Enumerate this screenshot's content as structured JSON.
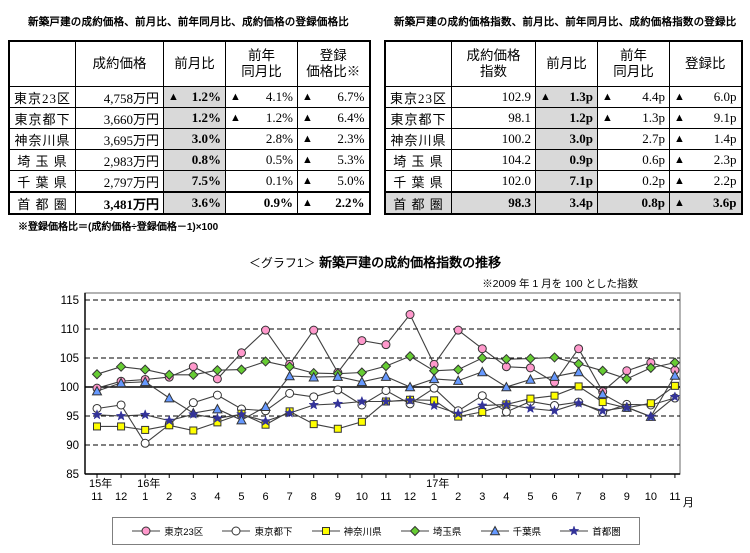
{
  "left_table": {
    "title": "新築戸建の成約価格、前月比、前年同月比、成約価格の登録価格比",
    "headers": [
      "成約価格",
      "前月比",
      "前年\n同月比",
      "登録\n価格比※"
    ],
    "rows": [
      {
        "label": "東京23区",
        "values": [
          {
            "tri": false,
            "text": "4,758万円"
          },
          {
            "tri": true,
            "text": "1.2%"
          },
          {
            "tri": true,
            "text": "4.1%"
          },
          {
            "tri": true,
            "text": "6.7%"
          }
        ]
      },
      {
        "label": "東京都下",
        "values": [
          {
            "tri": false,
            "text": "3,660万円"
          },
          {
            "tri": false,
            "text": "1.2%"
          },
          {
            "tri": true,
            "text": "1.2%"
          },
          {
            "tri": true,
            "text": "6.4%"
          }
        ]
      },
      {
        "label": "神奈川県",
        "values": [
          {
            "tri": false,
            "text": "3,695万円"
          },
          {
            "tri": false,
            "text": "3.0%"
          },
          {
            "tri": false,
            "text": "2.8%"
          },
          {
            "tri": true,
            "text": "2.3%"
          }
        ]
      },
      {
        "label": "埼 玉 県",
        "values": [
          {
            "tri": false,
            "text": "2,983万円"
          },
          {
            "tri": false,
            "text": "0.8%"
          },
          {
            "tri": false,
            "text": "0.5%"
          },
          {
            "tri": true,
            "text": "5.3%"
          }
        ]
      },
      {
        "label": "千 葉 県",
        "values": [
          {
            "tri": false,
            "text": "2,797万円"
          },
          {
            "tri": false,
            "text": "7.5%"
          },
          {
            "tri": false,
            "text": "0.1%"
          },
          {
            "tri": true,
            "text": "5.0%"
          }
        ]
      },
      {
        "label": "首 都 圏",
        "values": [
          {
            "tri": false,
            "text": "3,481万円"
          },
          {
            "tri": false,
            "text": "3.6%"
          },
          {
            "tri": false,
            "text": "0.9%"
          },
          {
            "tri": true,
            "text": "2.2%"
          }
        ]
      }
    ],
    "footnote": "※登録価格比＝(成約価格÷登録価格－1)×100"
  },
  "right_table": {
    "title": "新築戸建の成約価格指数、前月比、前年同月比、成約価格指数の登録比",
    "headers": [
      "成約価格\n指数",
      "前月比",
      "前年\n同月比",
      "登録比"
    ],
    "rows": [
      {
        "label": "東京23区",
        "values": [
          {
            "tri": false,
            "text": "102.9"
          },
          {
            "tri": true,
            "text": "1.3p"
          },
          {
            "tri": true,
            "text": "4.4p"
          },
          {
            "tri": true,
            "text": "6.0p"
          }
        ]
      },
      {
        "label": "東京都下",
        "values": [
          {
            "tri": false,
            "text": "98.1"
          },
          {
            "tri": false,
            "text": "1.2p"
          },
          {
            "tri": true,
            "text": "1.3p"
          },
          {
            "tri": true,
            "text": "9.1p"
          }
        ]
      },
      {
        "label": "神奈川県",
        "values": [
          {
            "tri": false,
            "text": "100.2"
          },
          {
            "tri": false,
            "text": "3.0p"
          },
          {
            "tri": false,
            "text": "2.7p"
          },
          {
            "tri": true,
            "text": "1.4p"
          }
        ]
      },
      {
        "label": "埼 玉 県",
        "values": [
          {
            "tri": false,
            "text": "104.2"
          },
          {
            "tri": false,
            "text": "0.9p"
          },
          {
            "tri": false,
            "text": "0.6p"
          },
          {
            "tri": true,
            "text": "2.3p"
          }
        ]
      },
      {
        "label": "千 葉 県",
        "values": [
          {
            "tri": false,
            "text": "102.0"
          },
          {
            "tri": false,
            "text": "7.1p"
          },
          {
            "tri": false,
            "text": "0.2p"
          },
          {
            "tri": true,
            "text": "2.2p"
          }
        ]
      },
      {
        "label": "首 都 圏",
        "values": [
          {
            "tri": false,
            "text": "98.3"
          },
          {
            "tri": false,
            "text": "3.4p"
          },
          {
            "tri": false,
            "text": "0.8p"
          },
          {
            "tri": true,
            "text": "3.6p"
          }
        ]
      }
    ]
  },
  "chart_header": {
    "title_prefix": "＜グラフ1＞",
    "title": "新築戸建の成約価格指数の推移",
    "subtitle": "※2009 年 1 月を 100 とした指数"
  },
  "chart_data": {
    "type": "line",
    "title": "新築戸建の成約価格指数の推移",
    "subtitle": "※2009年1月を100とした指数",
    "ylim": [
      85,
      115
    ],
    "yticks": [
      85,
      90,
      95,
      100,
      105,
      110,
      115
    ],
    "grid": "horizontal-dashed",
    "legend_position": "bottom",
    "x_month_labels": [
      "11",
      "12",
      "1",
      "2",
      "3",
      "4",
      "5",
      "6",
      "7",
      "8",
      "9",
      "10",
      "11",
      "12",
      "1",
      "2",
      "3",
      "4",
      "5",
      "6",
      "7",
      "8",
      "9",
      "10",
      "11"
    ],
    "x_year_labels": [
      {
        "index": 0,
        "label": "15年"
      },
      {
        "index": 2,
        "label": "16年"
      },
      {
        "index": 14,
        "label": "17年"
      }
    ],
    "x_axis_suffix": "月",
    "series": [
      {
        "name": "東京23区",
        "marker": "circle",
        "color": "#ff99cc",
        "values": [
          99.8,
          101.0,
          101.3,
          101.7,
          103.5,
          101.4,
          105.9,
          109.8,
          103.9,
          109.8,
          102.5,
          108.0,
          107.3,
          112.5,
          103.9,
          109.8,
          106.6,
          103.5,
          103.3,
          100.8,
          106.6,
          99.2,
          102.8,
          104.2,
          102.9
        ]
      },
      {
        "name": "東京都下",
        "marker": "circle-open",
        "color": "#ffffff",
        "values": [
          96.3,
          96.9,
          90.3,
          93.5,
          97.3,
          98.6,
          96.2,
          95.9,
          98.9,
          98.3,
          99.5,
          96.9,
          99.4,
          97.1,
          99.8,
          95.9,
          98.5,
          95.7,
          97.5,
          96.8,
          97.4,
          95.6,
          97.0,
          96.9,
          98.1
        ]
      },
      {
        "name": "神奈川県",
        "marker": "square",
        "color": "#ffff00",
        "values": [
          93.2,
          93.2,
          92.6,
          93.4,
          92.5,
          93.9,
          95.4,
          93.5,
          95.8,
          93.6,
          92.8,
          94.0,
          97.5,
          97.8,
          97.7,
          94.9,
          95.7,
          97.0,
          98.0,
          98.5,
          100.1,
          97.4,
          96.4,
          97.2,
          100.2
        ]
      },
      {
        "name": "埼玉県",
        "marker": "diamond",
        "color": "#66cc33",
        "values": [
          102.2,
          103.5,
          103.0,
          102.1,
          102.1,
          102.9,
          103.0,
          104.4,
          103.5,
          102.4,
          102.3,
          102.5,
          103.6,
          105.3,
          102.8,
          103.0,
          105.0,
          104.8,
          104.9,
          105.1,
          104.0,
          102.8,
          101.4,
          103.3,
          104.2
        ]
      },
      {
        "name": "千葉県",
        "marker": "triangle",
        "color": "#6699ff",
        "values": [
          99.3,
          100.7,
          100.9,
          98.1,
          95.5,
          96.2,
          94.3,
          96.6,
          101.9,
          101.7,
          101.8,
          100.9,
          101.8,
          100.0,
          101.4,
          101.1,
          102.6,
          100.0,
          101.3,
          101.8,
          102.6,
          98.8,
          96.5,
          94.9,
          102.0
        ]
      },
      {
        "name": "首都圏",
        "marker": "star",
        "color": "#333399",
        "values": [
          95.2,
          95.0,
          95.2,
          94.2,
          95.3,
          94.6,
          95.3,
          94.1,
          95.5,
          96.9,
          97.1,
          97.5,
          97.5,
          97.7,
          96.8,
          95.4,
          96.8,
          97.0,
          96.3,
          95.9,
          97.2,
          95.9,
          96.5,
          94.9,
          98.3
        ]
      }
    ]
  }
}
